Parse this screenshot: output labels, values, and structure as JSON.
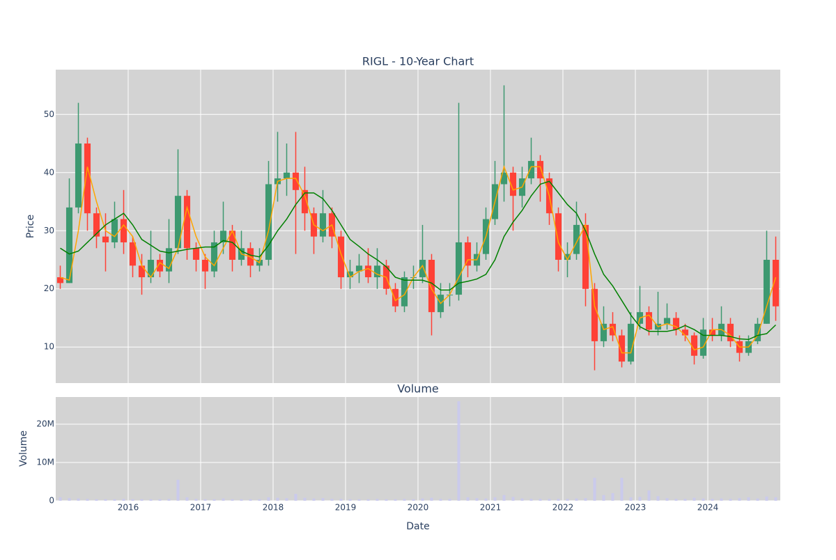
{
  "chart_data": [
    {
      "type": "candlestick",
      "title": "RIGL - 10-Year Chart",
      "ylabel": "Price",
      "xlim": [
        2015.0,
        2025.0
      ],
      "ylim": [
        3.8,
        57.7
      ],
      "yticks": [
        10,
        20,
        30,
        40,
        50
      ],
      "grid": true,
      "increasing_color": "#3d9970",
      "decreasing_color": "#ff4136",
      "x": [
        2015.0625,
        2015.1875,
        2015.3125,
        2015.4375,
        2015.5625,
        2015.6875,
        2015.8125,
        2015.9375,
        2016.0625,
        2016.1875,
        2016.3125,
        2016.4375,
        2016.5625,
        2016.6875,
        2016.8125,
        2016.9375,
        2017.0625,
        2017.1875,
        2017.3125,
        2017.4375,
        2017.5625,
        2017.6875,
        2017.8125,
        2017.9375,
        2018.0625,
        2018.1875,
        2018.3125,
        2018.4375,
        2018.5625,
        2018.6875,
        2018.8125,
        2018.9375,
        2019.0625,
        2019.1875,
        2019.3125,
        2019.4375,
        2019.5625,
        2019.6875,
        2019.8125,
        2019.9375,
        2020.0625,
        2020.1875,
        2020.3125,
        2020.4375,
        2020.5625,
        2020.6875,
        2020.8125,
        2020.9375,
        2021.0625,
        2021.1875,
        2021.3125,
        2021.4375,
        2021.5625,
        2021.6875,
        2021.8125,
        2021.9375,
        2022.0625,
        2022.1875,
        2022.3125,
        2022.4375,
        2022.5625,
        2022.6875,
        2022.8125,
        2022.9375,
        2023.0625,
        2023.1875,
        2023.3125,
        2023.4375,
        2023.5625,
        2023.6875,
        2023.8125,
        2023.9375,
        2024.0625,
        2024.1875,
        2024.3125,
        2024.4375,
        2024.5625,
        2024.6875,
        2024.8125,
        2024.9375
      ],
      "open": [
        22,
        21,
        34,
        45,
        33,
        29,
        28,
        32,
        28,
        24,
        22,
        25,
        23,
        27,
        36,
        27,
        25,
        23,
        28,
        30,
        25,
        27,
        24,
        25,
        38,
        39,
        40,
        37,
        33,
        29,
        33,
        29,
        22,
        23,
        24,
        22,
        24,
        20,
        17,
        22,
        22,
        25,
        16,
        19,
        19,
        28,
        24,
        26,
        32,
        38,
        40,
        36,
        39,
        42,
        39,
        33,
        25,
        26,
        31,
        20,
        11,
        14,
        12,
        7.5,
        14,
        16,
        13,
        14,
        15,
        13,
        12,
        8.5,
        13,
        12,
        14,
        11,
        9,
        11,
        14,
        25
      ],
      "high": [
        24,
        39,
        52,
        46,
        34,
        33,
        35,
        37,
        29,
        26,
        30,
        26,
        32,
        44,
        37,
        28,
        26,
        30,
        35,
        31,
        30,
        28,
        27,
        42,
        47,
        45,
        47,
        41,
        34,
        37,
        34,
        30,
        25,
        26,
        27,
        27,
        25,
        21,
        23,
        24,
        31,
        26,
        21,
        21,
        52,
        29,
        28,
        34,
        42,
        55,
        41,
        41,
        46,
        43,
        40,
        34,
        28,
        35,
        33,
        21,
        17,
        16,
        13,
        16,
        20.5,
        17,
        19.5,
        17.5,
        16,
        14,
        12.5,
        15,
        15,
        17,
        15,
        12,
        12,
        15,
        30,
        29
      ],
      "low": [
        20,
        21,
        33,
        30,
        27,
        23,
        27,
        26,
        22,
        19,
        21,
        22,
        21,
        26,
        25,
        23,
        20,
        22,
        26,
        23,
        24,
        22,
        23,
        24,
        35,
        36,
        26,
        30,
        26,
        28,
        27,
        20,
        20,
        21,
        21,
        20,
        19,
        16,
        16,
        20,
        21,
        12,
        15,
        17,
        18,
        22,
        23,
        25,
        31,
        35,
        30,
        34,
        38,
        35,
        31,
        23,
        22,
        25,
        17,
        6,
        10,
        11,
        6.5,
        7,
        13,
        12,
        12,
        13,
        12,
        11,
        7,
        8,
        11,
        11,
        10,
        7.5,
        8.5,
        10.5,
        14,
        14.5
      ],
      "close": [
        21,
        34,
        45,
        33,
        29,
        28,
        32,
        28,
        24,
        22,
        25,
        23,
        27,
        36,
        27,
        25,
        23,
        28,
        30,
        25,
        27,
        24,
        25,
        38,
        39,
        40,
        37,
        33,
        29,
        33,
        29,
        22,
        23,
        24,
        22,
        24,
        20,
        17,
        22,
        22,
        25,
        16,
        19,
        19,
        28,
        24,
        26,
        32,
        38,
        40,
        36,
        39,
        42,
        39,
        33,
        25,
        26,
        31,
        20,
        11,
        14,
        12,
        7.5,
        14,
        16,
        13,
        14,
        15,
        13,
        12,
        8.5,
        13,
        12,
        14,
        11,
        9,
        11,
        14,
        25,
        17
      ],
      "series": [
        {
          "color": "orange",
          "values": [
            22,
            21.5,
            30,
            41,
            35,
            30,
            29,
            31,
            29,
            24,
            22,
            24.5,
            23.5,
            27,
            34,
            29,
            25.5,
            24,
            27,
            30,
            26,
            25.5,
            24.5,
            30,
            38.5,
            39,
            39,
            36,
            31,
            30,
            31,
            26,
            22,
            23,
            23.5,
            22.5,
            22,
            18,
            19,
            22,
            24,
            20,
            17.5,
            19,
            22,
            25,
            25,
            29,
            35,
            41,
            37,
            37.5,
            41,
            41,
            36,
            28,
            25,
            28,
            31,
            17,
            13,
            13.5,
            9,
            9,
            15,
            15.5,
            13.5,
            14,
            13.5,
            12,
            9.5,
            10,
            13,
            13,
            12,
            10,
            10,
            12,
            17,
            22
          ]
        },
        {
          "color": "green",
          "values": [
            27,
            26,
            26.5,
            28,
            29.5,
            31,
            32,
            33,
            31,
            28.5,
            27.5,
            26.5,
            26.2,
            26.5,
            26.8,
            27,
            27.2,
            27.2,
            28.3,
            28,
            26.5,
            25.8,
            25.5,
            27.5,
            30,
            32,
            34.5,
            36.5,
            36.5,
            35.5,
            33.5,
            31,
            28.5,
            27.3,
            26,
            25,
            23.8,
            22,
            21.5,
            21.5,
            21.5,
            21,
            19.8,
            19.8,
            21,
            21.3,
            21.7,
            22.5,
            25,
            29,
            31.5,
            33.5,
            36,
            38,
            38.5,
            36.5,
            34.5,
            33,
            30,
            26,
            22.5,
            20.5,
            18,
            15.5,
            13.5,
            12.7,
            12.7,
            12.7,
            13,
            13.7,
            13,
            12,
            12,
            12,
            11.8,
            11.4,
            11.3,
            12,
            12.3,
            13.8
          ]
        }
      ]
    },
    {
      "type": "bar",
      "title": "Volume",
      "ylabel": "Volume",
      "xlabel": "Date",
      "color": "rgba(200,200,240,0.85)",
      "xlim": [
        2015.0,
        2025.0
      ],
      "xticks": [
        2016,
        2017,
        2018,
        2019,
        2020,
        2021,
        2022,
        2023,
        2024
      ],
      "ylim": [
        0,
        27100000
      ],
      "yticks": [
        0,
        {
          "value": 10000000,
          "label": "10M"
        },
        {
          "value": 20000000,
          "label": "20M"
        }
      ],
      "grid": true,
      "values": [
        900000,
        700000,
        600000,
        500000,
        400000,
        400000,
        400000,
        500000,
        400000,
        400000,
        400000,
        400000,
        500000,
        5500000,
        900000,
        500000,
        400000,
        400000,
        600000,
        400000,
        400000,
        400000,
        400000,
        900000,
        800000,
        700000,
        1800000,
        800000,
        600000,
        700000,
        500000,
        500000,
        400000,
        400000,
        400000,
        500000,
        400000,
        400000,
        500000,
        400000,
        600000,
        800000,
        500000,
        500000,
        26000000,
        900000,
        700000,
        600000,
        900000,
        1500000,
        1000000,
        600000,
        500000,
        500000,
        500000,
        500000,
        500000,
        600000,
        700000,
        6000000,
        1500000,
        2000000,
        6000000,
        900000,
        1000000,
        2700000,
        1200000,
        700000,
        500000,
        500000,
        800000,
        600000,
        500000,
        600000,
        500000,
        700000,
        900000,
        600000,
        1100000,
        900000
      ]
    }
  ]
}
